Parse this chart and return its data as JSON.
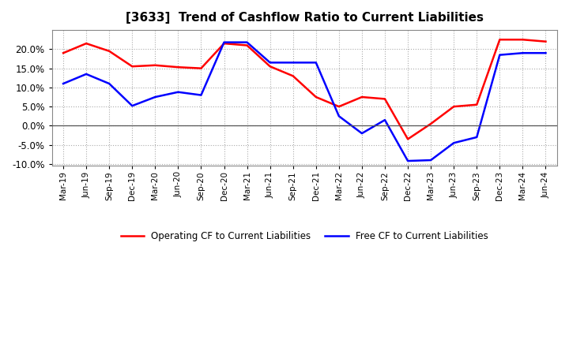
{
  "title": "[3633]  Trend of Cashflow Ratio to Current Liabilities",
  "x_labels": [
    "Mar-19",
    "Jun-19",
    "Sep-19",
    "Dec-19",
    "Mar-20",
    "Jun-20",
    "Sep-20",
    "Dec-20",
    "Mar-21",
    "Jun-21",
    "Sep-21",
    "Dec-21",
    "Mar-22",
    "Jun-22",
    "Sep-22",
    "Dec-22",
    "Mar-23",
    "Jun-23",
    "Sep-23",
    "Dec-23",
    "Mar-24",
    "Jun-24"
  ],
  "operating_cf": [
    19.0,
    21.5,
    19.5,
    15.5,
    15.8,
    15.3,
    15.0,
    21.5,
    21.0,
    15.5,
    13.0,
    7.5,
    5.0,
    7.5,
    7.0,
    -3.5,
    0.5,
    5.0,
    5.5,
    22.5,
    22.5,
    22.0
  ],
  "free_cf": [
    11.0,
    13.5,
    11.0,
    5.2,
    7.5,
    8.8,
    8.0,
    21.8,
    21.8,
    16.5,
    16.5,
    16.5,
    2.5,
    -2.0,
    1.5,
    -9.2,
    -9.0,
    -4.5,
    -3.0,
    18.5,
    19.0,
    19.0
  ],
  "operating_cf_color": "#FF0000",
  "free_cf_color": "#0000FF",
  "ylim": [
    -10.5,
    25.0
  ],
  "background_color": "#FFFFFF",
  "plot_bg_color": "#FFFFFF",
  "grid_color": "#AAAAAA"
}
